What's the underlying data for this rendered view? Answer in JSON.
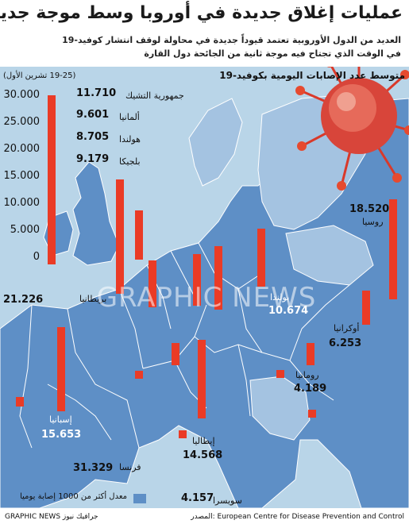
{
  "header": {
    "title": "عمليات إغلاق جديدة في أوروبا وسط موجة جديدة من كوفيد",
    "subtitle_lines": [
      "العديد من الدول الأوروبية تعتمد قيوداً جديدة في محاولة لوقف انتشار كوفيد-19",
      "في الوقت الذي تجتاح فيه موجة ثانية من الجائحة دول القارة"
    ]
  },
  "watermark": "GRAPHIC NEWS",
  "legend": {
    "label": "معدل أكثر من 1000 إصابة يوميا",
    "color": "#5e8fc6"
  },
  "footer": {
    "source": "المصدر: European Centre for Disease Prevention and Control",
    "credit": "GRAPHIC NEWS جرافيك نيوز"
  },
  "colors": {
    "bar": "#ea3b26",
    "sea": "#b9d5e8",
    "high": "#5e8fc6",
    "low": "#a4c3e1",
    "border": "#ffffff"
  },
  "chart_data": {
    "type": "bar",
    "title": "متوسط عدد الإصابات اليومية بكوفيد-19",
    "date": "(19-25 تشرين الأول)",
    "ylim": [
      0,
      30000
    ],
    "yticks": [
      "30.000",
      "25.000",
      "20.000",
      "15.000",
      "10.000",
      "5.000",
      "0"
    ],
    "series": [
      {
        "country": "فرنسا",
        "value": 31329,
        "label": "31.329"
      },
      {
        "country": "بريطانيا",
        "value": 21226,
        "label": "21.226"
      },
      {
        "country": "روسيا",
        "value": 18520,
        "label": "18.520"
      },
      {
        "country": "إسبانيا",
        "value": 15653,
        "label": "15.653"
      },
      {
        "country": "إيطاليا",
        "value": 14568,
        "label": "14.568"
      },
      {
        "country": "جمهورية التشيك",
        "value": 11710,
        "label": "11.710"
      },
      {
        "country": "بولندا",
        "value": 10674,
        "label": "10.674"
      },
      {
        "country": "ألمانيا",
        "value": 9601,
        "label": "9.601"
      },
      {
        "country": "بلجيكا",
        "value": 9179,
        "label": "9.179"
      },
      {
        "country": "هولندا",
        "value": 8705,
        "label": "8.705"
      },
      {
        "country": "أوكرانيا",
        "value": 6253,
        "label": "6.253"
      },
      {
        "country": "رومانيا",
        "value": 4189,
        "label": "4.189"
      },
      {
        "country": "سويسرا",
        "value": 4157,
        "label": "4.157"
      }
    ]
  }
}
